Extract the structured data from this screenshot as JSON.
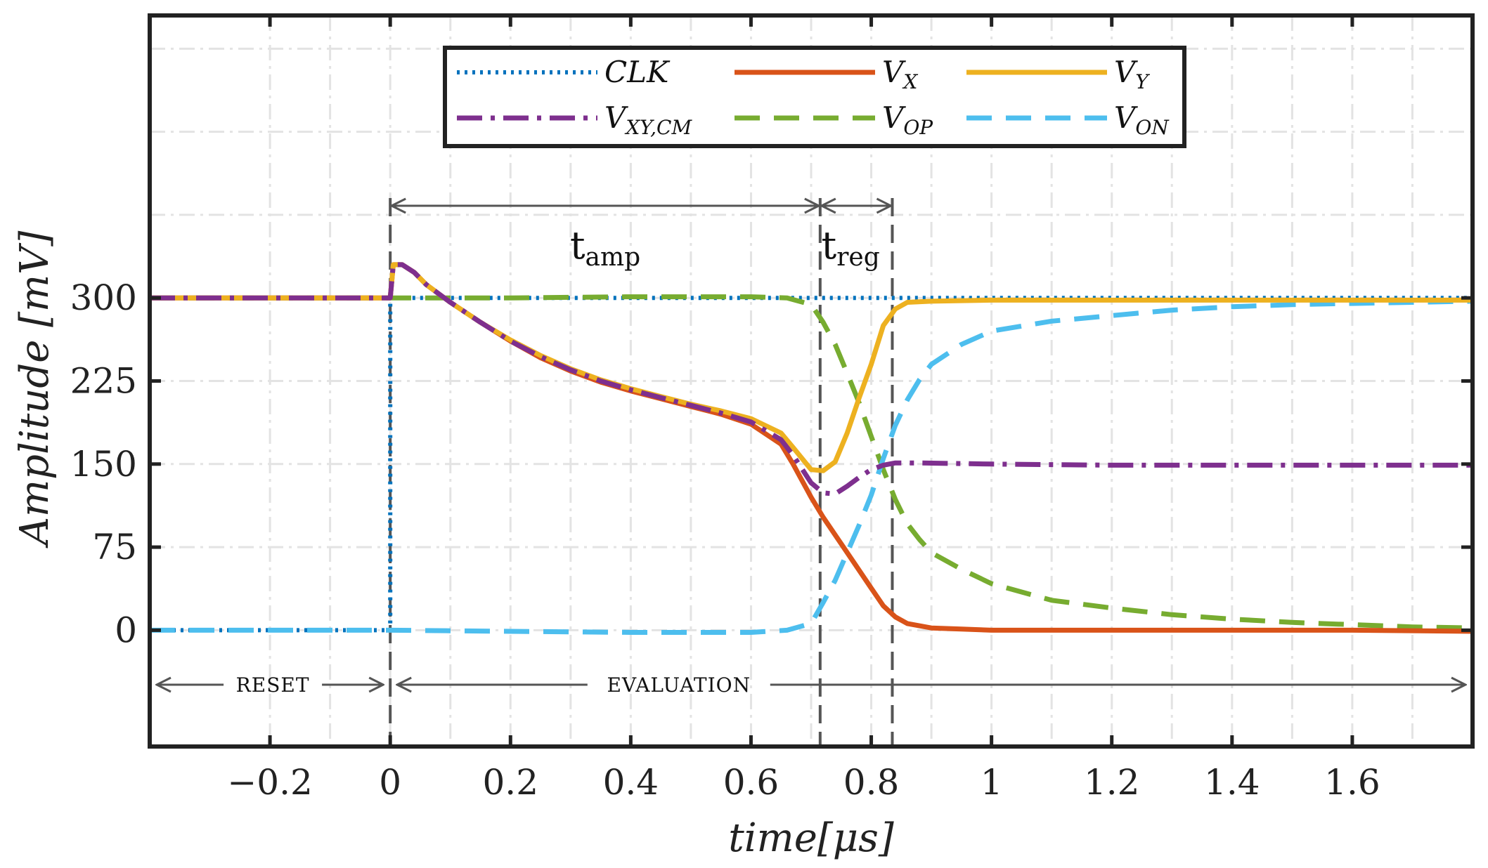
{
  "chart_data": {
    "type": "line",
    "xlabel": "time[μs]",
    "ylabel": "Amplitude [mV]",
    "xlim": [
      -0.4,
      1.8
    ],
    "ylim": [
      -105,
      555
    ],
    "xticks": [
      -0.2,
      0,
      0.2,
      0.4,
      0.6,
      0.8,
      1,
      1.2,
      1.4,
      1.6
    ],
    "xtick_labels": [
      "−0.2",
      "0",
      "0.2",
      "0.4",
      "0.6",
      "0.8",
      "1",
      "1.2",
      "1.4",
      "1.6"
    ],
    "yticks": [
      0,
      75,
      150,
      225,
      300
    ],
    "ytick_labels": [
      "0",
      "75",
      "150",
      "225",
      "300"
    ],
    "grid": true,
    "legend_position": "top-center",
    "legend": [
      {
        "key": "clk",
        "base": "CLK",
        "sub": ""
      },
      {
        "key": "vx",
        "base": "V",
        "sub": "X"
      },
      {
        "key": "vy",
        "base": "V",
        "sub": "Y"
      },
      {
        "key": "vxycm",
        "base": "V",
        "sub": "XY,CM"
      },
      {
        "key": "vop",
        "base": "V",
        "sub": "OP"
      },
      {
        "key": "von",
        "base": "V",
        "sub": "ON"
      }
    ],
    "series": [
      {
        "key": "clk",
        "name": "CLK",
        "color": "#0072BD",
        "dash": "dotted",
        "x": [
          -0.4,
          0,
          0,
          1.8
        ],
        "y": [
          0,
          0,
          300,
          300
        ]
      },
      {
        "key": "vx",
        "name": "VX",
        "color": "#D95319",
        "dash": "solid",
        "x": [
          -0.4,
          0,
          0.005,
          0.02,
          0.04,
          0.06,
          0.1,
          0.15,
          0.2,
          0.25,
          0.3,
          0.35,
          0.4,
          0.45,
          0.5,
          0.55,
          0.6,
          0.65,
          0.67,
          0.7,
          0.72,
          0.75,
          0.77,
          0.8,
          0.82,
          0.84,
          0.86,
          0.88,
          0.9,
          0.95,
          1.0,
          1.2,
          1.4,
          1.6,
          1.8
        ],
        "y": [
          300,
          300,
          330,
          330,
          323,
          312,
          296,
          278,
          261,
          246,
          234,
          224,
          216,
          209,
          202,
          195,
          186,
          168,
          150,
          120,
          102,
          78,
          62,
          38,
          22,
          12,
          6,
          4,
          2,
          1,
          0,
          0,
          0,
          0,
          -1
        ]
      },
      {
        "key": "vy",
        "name": "VY",
        "color": "#EDB120",
        "dash": "solid",
        "x": [
          -0.4,
          0,
          0.005,
          0.02,
          0.04,
          0.06,
          0.1,
          0.15,
          0.2,
          0.25,
          0.3,
          0.35,
          0.4,
          0.45,
          0.5,
          0.55,
          0.6,
          0.65,
          0.67,
          0.7,
          0.72,
          0.74,
          0.76,
          0.78,
          0.8,
          0.82,
          0.84,
          0.86,
          0.9,
          1.0,
          1.2,
          1.4,
          1.6,
          1.8
        ],
        "y": [
          300,
          300,
          330,
          330,
          323,
          312,
          296,
          278,
          262,
          248,
          236,
          226,
          218,
          211,
          204,
          198,
          191,
          178,
          165,
          145,
          144,
          152,
          178,
          210,
          240,
          275,
          290,
          296,
          297,
          298,
          298,
          298,
          298,
          298
        ]
      },
      {
        "key": "vxycm",
        "name": "VXY,CM",
        "color": "#7E2F8E",
        "dash": "dashdot",
        "x": [
          -0.4,
          0,
          0.005,
          0.02,
          0.04,
          0.06,
          0.1,
          0.15,
          0.2,
          0.25,
          0.3,
          0.35,
          0.4,
          0.45,
          0.5,
          0.55,
          0.6,
          0.65,
          0.67,
          0.7,
          0.72,
          0.74,
          0.76,
          0.78,
          0.8,
          0.82,
          0.84,
          0.88,
          1.0,
          1.2,
          1.4,
          1.6,
          1.8
        ],
        "y": [
          300,
          300,
          330,
          330,
          323,
          312,
          296,
          278,
          261,
          247,
          235,
          225,
          217,
          210,
          203,
          196,
          188,
          172,
          158,
          133,
          124,
          123,
          130,
          138,
          145,
          149,
          151,
          151,
          150,
          149,
          149,
          149,
          149
        ]
      },
      {
        "key": "vop",
        "name": "VOP",
        "color": "#77AC30",
        "dash": "dashed",
        "x": [
          -0.4,
          0,
          0.2,
          0.4,
          0.6,
          0.66,
          0.7,
          0.72,
          0.74,
          0.76,
          0.78,
          0.8,
          0.82,
          0.84,
          0.86,
          0.88,
          0.9,
          0.95,
          1.0,
          1.1,
          1.2,
          1.3,
          1.4,
          1.5,
          1.6,
          1.7,
          1.8
        ],
        "y": [
          300,
          300,
          300,
          301,
          301,
          300,
          294,
          278,
          258,
          232,
          205,
          175,
          145,
          118,
          96,
          82,
          70,
          55,
          42,
          27,
          20,
          14,
          10,
          7,
          5,
          3,
          2
        ]
      },
      {
        "key": "von",
        "name": "VON",
        "color": "#4DBEEE",
        "dash": "dashed",
        "x": [
          -0.4,
          0,
          0.2,
          0.4,
          0.6,
          0.66,
          0.7,
          0.72,
          0.74,
          0.76,
          0.78,
          0.8,
          0.82,
          0.84,
          0.86,
          0.88,
          0.9,
          0.95,
          1.0,
          1.1,
          1.2,
          1.3,
          1.4,
          1.5,
          1.6,
          1.7,
          1.8
        ],
        "y": [
          0,
          0,
          -1,
          -2,
          -2,
          0,
          6,
          25,
          45,
          70,
          95,
          122,
          155,
          185,
          208,
          226,
          240,
          258,
          270,
          279,
          284,
          289,
          292,
          294,
          295,
          296,
          297
        ]
      }
    ],
    "annotations": {
      "t_amp": {
        "base": "t",
        "sub": "amp",
        "x_from": 0,
        "x_to": 0.715
      },
      "t_reg": {
        "base": "t",
        "sub": "reg",
        "x_from": 0.715,
        "x_to": 0.835
      },
      "markers_x": [
        0,
        0.715,
        0.835
      ],
      "phases": [
        {
          "label": "RESET",
          "x_from": -0.4,
          "x_to": 0
        },
        {
          "label": "EVALUATION",
          "x_from": 0,
          "x_to": 1.8
        }
      ]
    }
  }
}
